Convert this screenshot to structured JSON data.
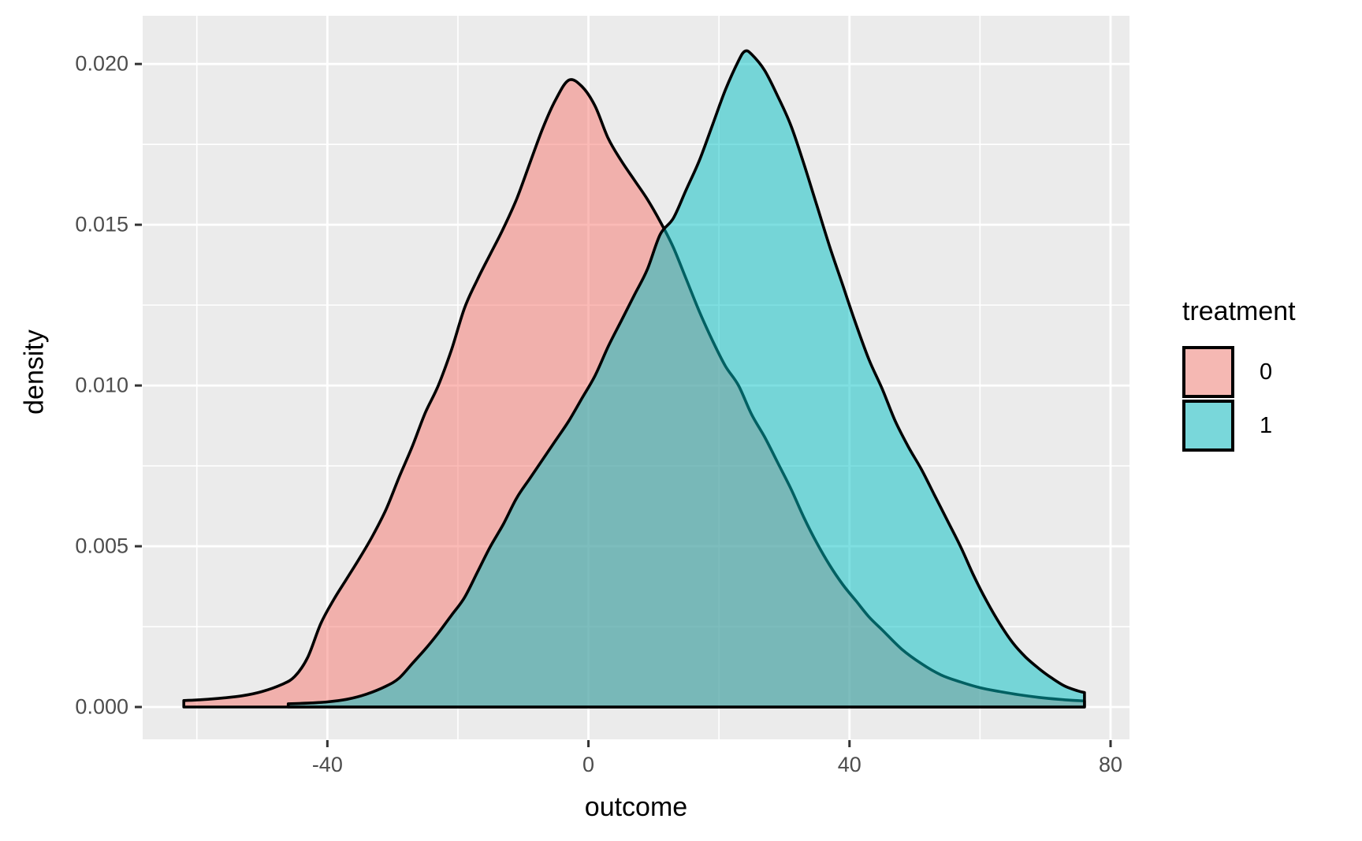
{
  "chart_data": {
    "type": "area",
    "subtype": "density",
    "title": "",
    "xlabel": "outcome",
    "ylabel": "density",
    "x_range": [
      -68.3,
      82.9
    ],
    "y_range": [
      -0.001005,
      0.0215
    ],
    "x_ticks": [
      {
        "value": -40,
        "label": "-40"
      },
      {
        "value": 0,
        "label": "0"
      },
      {
        "value": 40,
        "label": "40"
      },
      {
        "value": 80,
        "label": "80"
      }
    ],
    "y_ticks": [
      {
        "value": 0.0,
        "label": "0.000"
      },
      {
        "value": 0.005,
        "label": "0.005"
      },
      {
        "value": 0.01,
        "label": "0.010"
      },
      {
        "value": 0.015,
        "label": "0.015"
      },
      {
        "value": 0.02,
        "label": "0.020"
      }
    ],
    "x_minor": [
      -60,
      -20,
      20,
      60
    ],
    "y_minor": [
      0.0025,
      0.0075,
      0.0125,
      0.0175
    ],
    "grid": "on",
    "legend_position": "right",
    "style": {
      "panel_bg": "#EBEBEB",
      "grid_color": "#FFFFFF",
      "outline_color": "#000000",
      "tick_label_color": "#4D4D4D",
      "tick_mark_color": "#333333",
      "axis_title_color": "#000000",
      "fill_alpha": 0.5
    },
    "series": [
      {
        "name": "0",
        "fill": "#F8766D",
        "stroke": "#000000",
        "points": [
          [
            -62,
            0.0002
          ],
          [
            -59,
            0.00023
          ],
          [
            -56,
            0.00028
          ],
          [
            -53,
            0.00035
          ],
          [
            -50,
            0.00048
          ],
          [
            -47,
            0.0007
          ],
          [
            -45,
            0.00095
          ],
          [
            -43,
            0.00155
          ],
          [
            -41,
            0.0026
          ],
          [
            -39,
            0.00335
          ],
          [
            -37,
            0.004
          ],
          [
            -35,
            0.00465
          ],
          [
            -33,
            0.00535
          ],
          [
            -31,
            0.00615
          ],
          [
            -29,
            0.00715
          ],
          [
            -27,
            0.0081
          ],
          [
            -25,
            0.00915
          ],
          [
            -23,
            0.01
          ],
          [
            -21,
            0.0111
          ],
          [
            -19,
            0.0124
          ],
          [
            -17,
            0.0133
          ],
          [
            -15,
            0.0141
          ],
          [
            -13,
            0.0149
          ],
          [
            -11,
            0.0158
          ],
          [
            -9,
            0.0169
          ],
          [
            -7,
            0.018
          ],
          [
            -5,
            0.0189
          ],
          [
            -3,
            0.0195
          ],
          [
            -1,
            0.0193
          ],
          [
            1,
            0.0187
          ],
          [
            3,
            0.0177
          ],
          [
            5,
            0.017
          ],
          [
            7,
            0.0164
          ],
          [
            9,
            0.0158
          ],
          [
            11,
            0.0151
          ],
          [
            13,
            0.0143
          ],
          [
            15,
            0.0133
          ],
          [
            17,
            0.0123
          ],
          [
            19,
            0.0114
          ],
          [
            21,
            0.0106
          ],
          [
            23,
            0.01
          ],
          [
            25,
            0.0091
          ],
          [
            27,
            0.0084
          ],
          [
            29,
            0.0076
          ],
          [
            31,
            0.0068
          ],
          [
            33,
            0.0059
          ],
          [
            35,
            0.0051
          ],
          [
            37,
            0.0044
          ],
          [
            39,
            0.0038
          ],
          [
            41,
            0.0033
          ],
          [
            43,
            0.0028
          ],
          [
            45,
            0.0024
          ],
          [
            48,
            0.0018
          ],
          [
            51,
            0.00135
          ],
          [
            54,
            0.001
          ],
          [
            57,
            0.00078
          ],
          [
            60,
            0.0006
          ],
          [
            63,
            0.00048
          ],
          [
            66,
            0.00038
          ],
          [
            69,
            0.0003
          ],
          [
            72,
            0.00024
          ],
          [
            74,
            0.00021
          ],
          [
            76,
            0.00019
          ]
        ]
      },
      {
        "name": "1",
        "fill": "#00BFC4",
        "stroke": "#000000",
        "points": [
          [
            -46,
            0.0001
          ],
          [
            -43,
            0.00012
          ],
          [
            -40,
            0.00016
          ],
          [
            -37,
            0.00024
          ],
          [
            -34,
            0.0004
          ],
          [
            -31,
            0.00065
          ],
          [
            -29,
            0.0009
          ],
          [
            -27,
            0.00135
          ],
          [
            -25,
            0.0018
          ],
          [
            -23,
            0.0023
          ],
          [
            -21,
            0.00285
          ],
          [
            -19,
            0.0034
          ],
          [
            -17,
            0.0042
          ],
          [
            -15,
            0.005
          ],
          [
            -13,
            0.0057
          ],
          [
            -11,
            0.0065
          ],
          [
            -9,
            0.0071
          ],
          [
            -7,
            0.0077
          ],
          [
            -5,
            0.0083
          ],
          [
            -3,
            0.0089
          ],
          [
            -1,
            0.0096
          ],
          [
            1,
            0.0103
          ],
          [
            3,
            0.0112
          ],
          [
            5,
            0.012
          ],
          [
            7,
            0.0128
          ],
          [
            9,
            0.0136
          ],
          [
            11,
            0.0147
          ],
          [
            13,
            0.0152
          ],
          [
            15,
            0.0161
          ],
          [
            17,
            0.017
          ],
          [
            19,
            0.0181
          ],
          [
            21,
            0.0192
          ],
          [
            23,
            0.0201
          ],
          [
            24,
            0.0204
          ],
          [
            25,
            0.0203
          ],
          [
            27,
            0.0198
          ],
          [
            29,
            0.019
          ],
          [
            31,
            0.0181
          ],
          [
            33,
            0.0169
          ],
          [
            35,
            0.0156
          ],
          [
            37,
            0.0143
          ],
          [
            39,
            0.0131
          ],
          [
            41,
            0.0119
          ],
          [
            43,
            0.0108
          ],
          [
            45,
            0.0099
          ],
          [
            47,
            0.0089
          ],
          [
            49,
            0.0081
          ],
          [
            51,
            0.0074
          ],
          [
            53,
            0.0066
          ],
          [
            55,
            0.0058
          ],
          [
            57,
            0.005
          ],
          [
            59,
            0.0041
          ],
          [
            61,
            0.0033
          ],
          [
            63,
            0.0026
          ],
          [
            65,
            0.002
          ],
          [
            67,
            0.00155
          ],
          [
            69,
            0.0012
          ],
          [
            71,
            0.0009
          ],
          [
            73,
            0.00065
          ],
          [
            75,
            0.0005
          ],
          [
            76,
            0.00045
          ]
        ]
      }
    ]
  },
  "legend": {
    "title": "treatment",
    "items": [
      {
        "label": "0",
        "swatch": "#F5B8B3"
      },
      {
        "label": "1",
        "swatch": "#79D7DA"
      }
    ]
  }
}
